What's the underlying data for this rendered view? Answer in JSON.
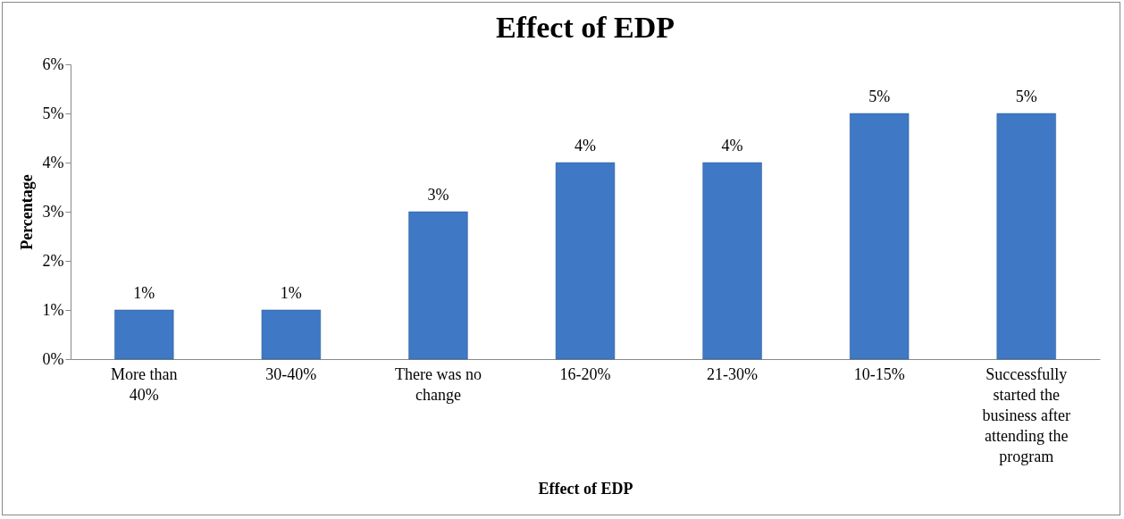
{
  "chart_data": {
    "type": "bar",
    "title": "Effect of EDP",
    "xlabel": "Effect of EDP",
    "ylabel": "Percentage",
    "categories": [
      "More than 40%",
      "30-40%",
      "There was no change",
      "16-20%",
      "21-30%",
      "10-15%",
      "Successfully started the business after attending the program"
    ],
    "values": [
      1,
      1,
      3,
      4,
      4,
      5,
      5
    ],
    "value_labels": [
      "1%",
      "1%",
      "3%",
      "4%",
      "4%",
      "5%",
      "5%"
    ],
    "color": "#3f78c4",
    "ylim": [
      0,
      6
    ],
    "yticks": [
      {
        "value": 0,
        "label": "0%"
      },
      {
        "value": 1,
        "label": "1%"
      },
      {
        "value": 2,
        "label": "2%"
      },
      {
        "value": 3,
        "label": "3%"
      },
      {
        "value": 4,
        "label": "4%"
      },
      {
        "value": 5,
        "label": "5%"
      },
      {
        "value": 6,
        "label": "6%"
      }
    ],
    "grid": false
  }
}
